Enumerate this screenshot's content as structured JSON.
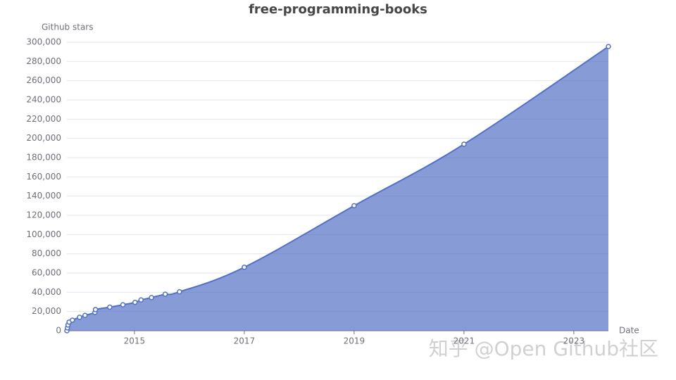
{
  "chart_data": {
    "type": "area",
    "title": "free-programming-books",
    "y_label": "Github stars",
    "x_label": "Date",
    "watermark": "知乎 @Open Github社区",
    "x": [
      2013.77,
      2013.78,
      2013.79,
      2013.81,
      2013.87,
      2014.0,
      2014.1,
      2014.28,
      2014.29,
      2014.55,
      2014.79,
      2015.01,
      2015.12,
      2015.31,
      2015.56,
      2015.82,
      2017.0,
      2019.0,
      2021.0,
      2023.63
    ],
    "series": [
      {
        "name": "Github stars",
        "color": "#5470c6",
        "values": [
          0,
          3000,
          6000,
          9000,
          11000,
          14000,
          16000,
          19000,
          22000,
          24500,
          27000,
          29500,
          32000,
          34500,
          38000,
          40500,
          66000,
          130000,
          194000,
          295500
        ]
      }
    ],
    "xlim": [
      2013.77,
      2023.63
    ],
    "xticks": [
      2015,
      2017,
      2019,
      2021,
      2023
    ],
    "ylim": [
      0,
      300000
    ],
    "yticks": [
      0,
      {
        "value": 20000,
        "label": "20,000"
      },
      {
        "value": 40000,
        "label": "40,000"
      },
      {
        "value": 60000,
        "label": "60,000"
      },
      {
        "value": 80000,
        "label": "80,000"
      },
      {
        "value": 100000,
        "label": "100,000"
      },
      {
        "value": 120000,
        "label": "120,000"
      },
      {
        "value": 140000,
        "label": "140,000"
      },
      {
        "value": 160000,
        "label": "160,000"
      },
      {
        "value": 180000,
        "label": "180,000"
      },
      {
        "value": 200000,
        "label": "200,000"
      },
      {
        "value": 220000,
        "label": "220,000"
      },
      {
        "value": 240000,
        "label": "240,000"
      },
      {
        "value": 260000,
        "label": "260,000"
      },
      {
        "value": 280000,
        "label": "280,000"
      },
      {
        "value": 300000,
        "label": "300,000"
      }
    ],
    "grid": true
  }
}
